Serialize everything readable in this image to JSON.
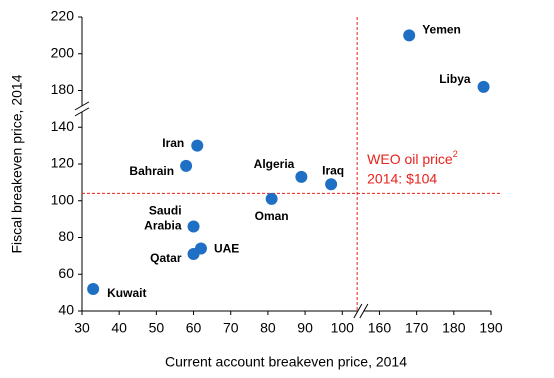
{
  "chart_data": {
    "type": "scatter",
    "x_label": "Current account breakeven price, 2014",
    "y_label": "Fiscal breakeven price, 2014",
    "labels": [
      "Kuwait",
      "Qatar",
      "UAE",
      "Saudi\nArabia",
      "Oman",
      "Bahrain",
      "Iran",
      "Algeria",
      "Iraq",
      "Yemen",
      "Libya"
    ],
    "x": [
      33,
      60,
      62,
      60,
      81,
      58,
      61,
      89,
      97,
      168,
      188
    ],
    "y": [
      52,
      71,
      74,
      86,
      101,
      119,
      130,
      113,
      109,
      210,
      182
    ],
    "color": "#1f6fc5",
    "xlim": [
      30,
      190
    ],
    "xticks": [
      30,
      40,
      50,
      60,
      70,
      80,
      90,
      100,
      160,
      170,
      180,
      190
    ],
    "x_break": [
      105,
      155
    ],
    "ylim": [
      40,
      220
    ],
    "yticks": [
      40,
      60,
      80,
      100,
      120,
      140,
      180,
      200,
      220
    ],
    "y_break": [
      150,
      170
    ],
    "reference_x": 104,
    "reference_y": 104,
    "reference_color": "#e8221c",
    "annotation": {
      "line1": "WEO oil price",
      "superscript": "2",
      "line2": "2014: $104"
    }
  }
}
